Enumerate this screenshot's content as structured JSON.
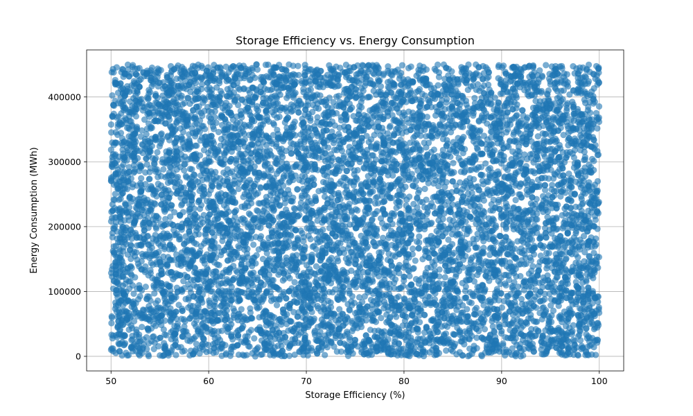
{
  "chart_data": {
    "type": "scatter",
    "title": "Storage Efficiency vs. Energy Consumption",
    "xlabel": "Storage Efficiency (%)",
    "ylabel": "Energy Consumption (MWh)",
    "xlim": [
      47.5,
      102.5
    ],
    "ylim": [
      -22500,
      472500
    ],
    "xticks": [
      50,
      60,
      70,
      80,
      90,
      100
    ],
    "yticks": [
      0,
      100000,
      200000,
      300000,
      400000
    ],
    "ytick_labels": [
      "0",
      "100000",
      "200000",
      "300000",
      "400000"
    ],
    "grid": true,
    "marker_color": "#1f77b4",
    "marker_alpha": 0.6,
    "series": [
      {
        "points_note_visible": false,
        "x": [
          50.2,
          51.4,
          52.8,
          53.5,
          55.1,
          56.7,
          57.9,
          59.2,
          60.8,
          62.3,
          63.9,
          65.4,
          66.8,
          68.1,
          69.7,
          71.2,
          72.6,
          74.1,
          75.8,
          77.3,
          78.9,
          80.4,
          81.7,
          83.2,
          84.8,
          86.3,
          87.7,
          89.1,
          90.6,
          92.2,
          93.8,
          95.1,
          96.7,
          98.2,
          99.6,
          50.9,
          52.1,
          54.3,
          55.8,
          57.2,
          58.6,
          61.5,
          63.1,
          64.6,
          67.4,
          70.3,
          73.4,
          76.5,
          79.6,
          82.5,
          85.4,
          88.5,
          91.4,
          94.3,
          97.5,
          99.9,
          51.7,
          54.9,
          58.1,
          61.9,
          65.9,
          69.2,
          72.9,
          76.9,
          80.9,
          84.1,
          87.1,
          90.9,
          93.1,
          96.1,
          98.9
        ],
        "y": [
          12000,
          435000,
          88000,
          210000,
          342000,
          157000,
          398000,
          61000,
          276000,
          445000,
          119000,
          305000,
          27000,
          188000,
          412000,
          74000,
          254000,
          367000,
          143000,
          9000,
          329000,
          226000,
          441000,
          97000,
          285000,
          171000,
          383000,
          46000,
          248000,
          419000,
          132000,
          310000,
          65000,
          197000,
          428000,
          262000,
          15000,
          376000,
          109000,
          233000,
          447000,
          82000,
          351000,
          199000,
          6000,
          293000,
          160000,
          421000,
          38000,
          267000,
          134000,
          359000,
          214000,
          3000,
          318000,
          92000,
          183000,
          53000,
          289000,
          401000,
          240000,
          124000,
          436000,
          279000,
          166000,
          20000,
          337000,
          79000,
          257000,
          394000,
          146000
        ]
      }
    ]
  }
}
